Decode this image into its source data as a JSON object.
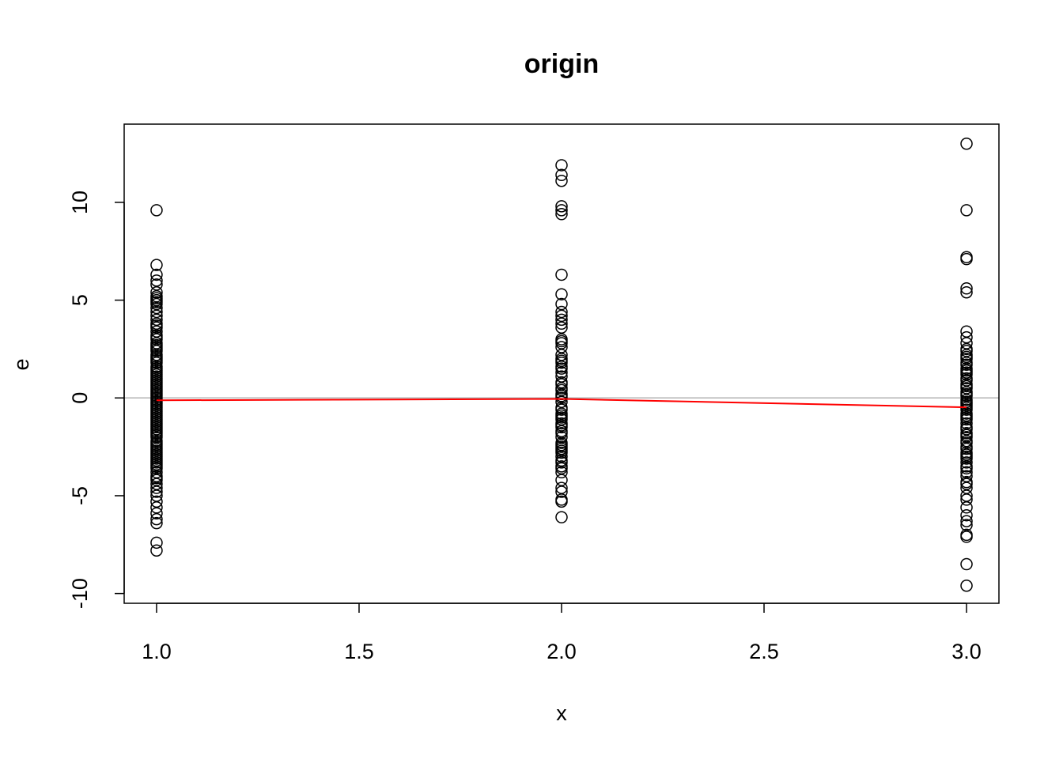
{
  "chart_data": {
    "type": "scatter",
    "title": "origin",
    "xlabel": "x",
    "ylabel": "e",
    "xlim": [
      0.92,
      3.08
    ],
    "ylim": [
      -10.5,
      14.0
    ],
    "x_ticks": [
      1.0,
      1.5,
      2.0,
      2.5,
      3.0
    ],
    "x_tick_labels": [
      "1.0",
      "1.5",
      "2.0",
      "2.5",
      "3.0"
    ],
    "y_ticks": [
      -10,
      -5,
      0,
      5,
      10
    ],
    "y_tick_labels": [
      "-10",
      "-5",
      "0",
      "5",
      "10"
    ],
    "grid": false,
    "reference_line": {
      "y": 0,
      "color": "#b3b3b3"
    },
    "series": [
      {
        "type": "points",
        "marker": "open-circle",
        "color": "#000000",
        "x": [
          1,
          1,
          1,
          1,
          1,
          1,
          1,
          1,
          1,
          1,
          1,
          1,
          1,
          1,
          1,
          1,
          1,
          1,
          1,
          1,
          1,
          1,
          1,
          1,
          1,
          1,
          1,
          1,
          1,
          1,
          1,
          1,
          1,
          1,
          1,
          1,
          1,
          1,
          1,
          1,
          1,
          1,
          1,
          1,
          1,
          1,
          1,
          1,
          1,
          1,
          1,
          1,
          1,
          1,
          1,
          1,
          1,
          1,
          1,
          1,
          1,
          1,
          1,
          1,
          1,
          1,
          1,
          1,
          1,
          1,
          1,
          1,
          1,
          1,
          1,
          1,
          1,
          1,
          1,
          1,
          1,
          1,
          1,
          1,
          1,
          1,
          1,
          1,
          1,
          1,
          1,
          1,
          1,
          1,
          1,
          1,
          1,
          1,
          1,
          2,
          2,
          2,
          2,
          2,
          2,
          2,
          2,
          2,
          2,
          2,
          2,
          2,
          2,
          2,
          2,
          2,
          2,
          2,
          2,
          2,
          2,
          2,
          2,
          2,
          2,
          2,
          2,
          2,
          2,
          2,
          2,
          2,
          2,
          2,
          2,
          2,
          2,
          2,
          2,
          2,
          2,
          2,
          2,
          2,
          2,
          2,
          2,
          2,
          2,
          2,
          2,
          2,
          2,
          2,
          2,
          2,
          2,
          2,
          2,
          2,
          2,
          2,
          2,
          3,
          3,
          3,
          3,
          3,
          3,
          3,
          3,
          3,
          3,
          3,
          3,
          3,
          3,
          3,
          3,
          3,
          3,
          3,
          3,
          3,
          3,
          3,
          3,
          3,
          3,
          3,
          3,
          3,
          3,
          3,
          3,
          3,
          3,
          3,
          3,
          3,
          3,
          3,
          3,
          3,
          3,
          3,
          3,
          3,
          3,
          3,
          3,
          3,
          3,
          3,
          3,
          3,
          3,
          3,
          3,
          3,
          3,
          3,
          3,
          3,
          3,
          3,
          3,
          3,
          3,
          3,
          3,
          3,
          3
        ],
        "y": [
          9.6,
          6.8,
          6.3,
          6.0,
          5.8,
          5.4,
          5.2,
          5.0,
          4.8,
          4.6,
          4.4,
          4.2,
          4.0,
          3.8,
          3.6,
          3.4,
          3.2,
          3.0,
          2.8,
          2.6,
          2.4,
          2.2,
          2.0,
          1.8,
          1.6,
          1.4,
          1.2,
          1.0,
          0.8,
          0.6,
          0.4,
          0.2,
          0.0,
          -0.2,
          -0.4,
          -0.6,
          -0.8,
          -1.0,
          -1.2,
          -1.4,
          -1.6,
          -1.8,
          -2.0,
          -2.2,
          -2.4,
          -2.6,
          -2.8,
          -3.0,
          -3.2,
          -3.4,
          -3.6,
          -3.8,
          -4.0,
          -4.2,
          -4.4,
          -4.6,
          -4.8,
          -5.0,
          -5.3,
          -5.6,
          -5.9,
          -6.2,
          -6.4,
          -7.4,
          -7.8,
          3.7,
          3.1,
          2.5,
          1.9,
          1.3,
          0.7,
          0.1,
          -0.5,
          -1.1,
          -1.7,
          -2.3,
          -2.9,
          -3.5,
          -4.1,
          -0.3,
          -0.9,
          -1.5,
          0.5,
          1.5,
          2.1,
          -2.5,
          -3.3,
          -0.7,
          0.9,
          1.1,
          -1.3,
          -1.9,
          -2.7,
          -3.1,
          0.3,
          2.7,
          -0.1,
          4.9,
          5.1,
          11.9,
          11.4,
          11.1,
          9.8,
          9.6,
          9.4,
          6.3,
          5.3,
          4.8,
          4.4,
          4.2,
          4.0,
          3.8,
          3.0,
          2.8,
          2.6,
          2.2,
          1.8,
          1.5,
          1.3,
          1.1,
          0.8,
          0.5,
          0.2,
          0.0,
          -0.2,
          -0.5,
          -0.8,
          -1.0,
          -1.3,
          -1.5,
          -1.8,
          -2.0,
          -2.3,
          -2.5,
          -2.8,
          -3.0,
          -3.3,
          -3.5,
          -3.8,
          -4.2,
          -4.6,
          -4.8,
          -5.2,
          -5.3,
          -6.1,
          2.0,
          -2.7,
          -3.2,
          0.7,
          1.6,
          -0.6,
          -1.1,
          -1.4,
          3.6,
          -0.9,
          -2.4,
          0.4,
          2.9,
          1.9,
          -1.7,
          -3.6,
          -2.6,
          0.1,
          13.0,
          9.6,
          7.2,
          7.1,
          5.6,
          5.4,
          3.4,
          3.1,
          2.8,
          2.5,
          2.2,
          2.0,
          1.8,
          1.5,
          1.2,
          1.0,
          0.7,
          0.5,
          0.3,
          0.1,
          -0.1,
          -0.3,
          -0.5,
          -0.8,
          -1.0,
          -1.3,
          -1.5,
          -1.8,
          -2.0,
          -2.3,
          -2.5,
          -2.8,
          -3.0,
          -3.3,
          -3.5,
          -3.8,
          -4.0,
          -4.3,
          -4.6,
          -5.0,
          -5.2,
          -5.6,
          -6.0,
          -6.3,
          -6.5,
          -7.0,
          -7.1,
          -8.5,
          -9.6,
          2.1,
          1.7,
          -0.6,
          -1.1,
          -1.9,
          -2.6,
          -3.1,
          0.2,
          -0.2,
          1.3,
          -4.4,
          2.4,
          -2.2,
          -3.6,
          0.9,
          -0.4,
          -1.6,
          -2.9,
          1.4,
          -0.9,
          0.6
        ]
      },
      {
        "type": "line",
        "color": "#ff0000",
        "x": [
          1,
          2,
          3
        ],
        "y": [
          -0.12,
          -0.05,
          -0.48
        ]
      }
    ]
  }
}
